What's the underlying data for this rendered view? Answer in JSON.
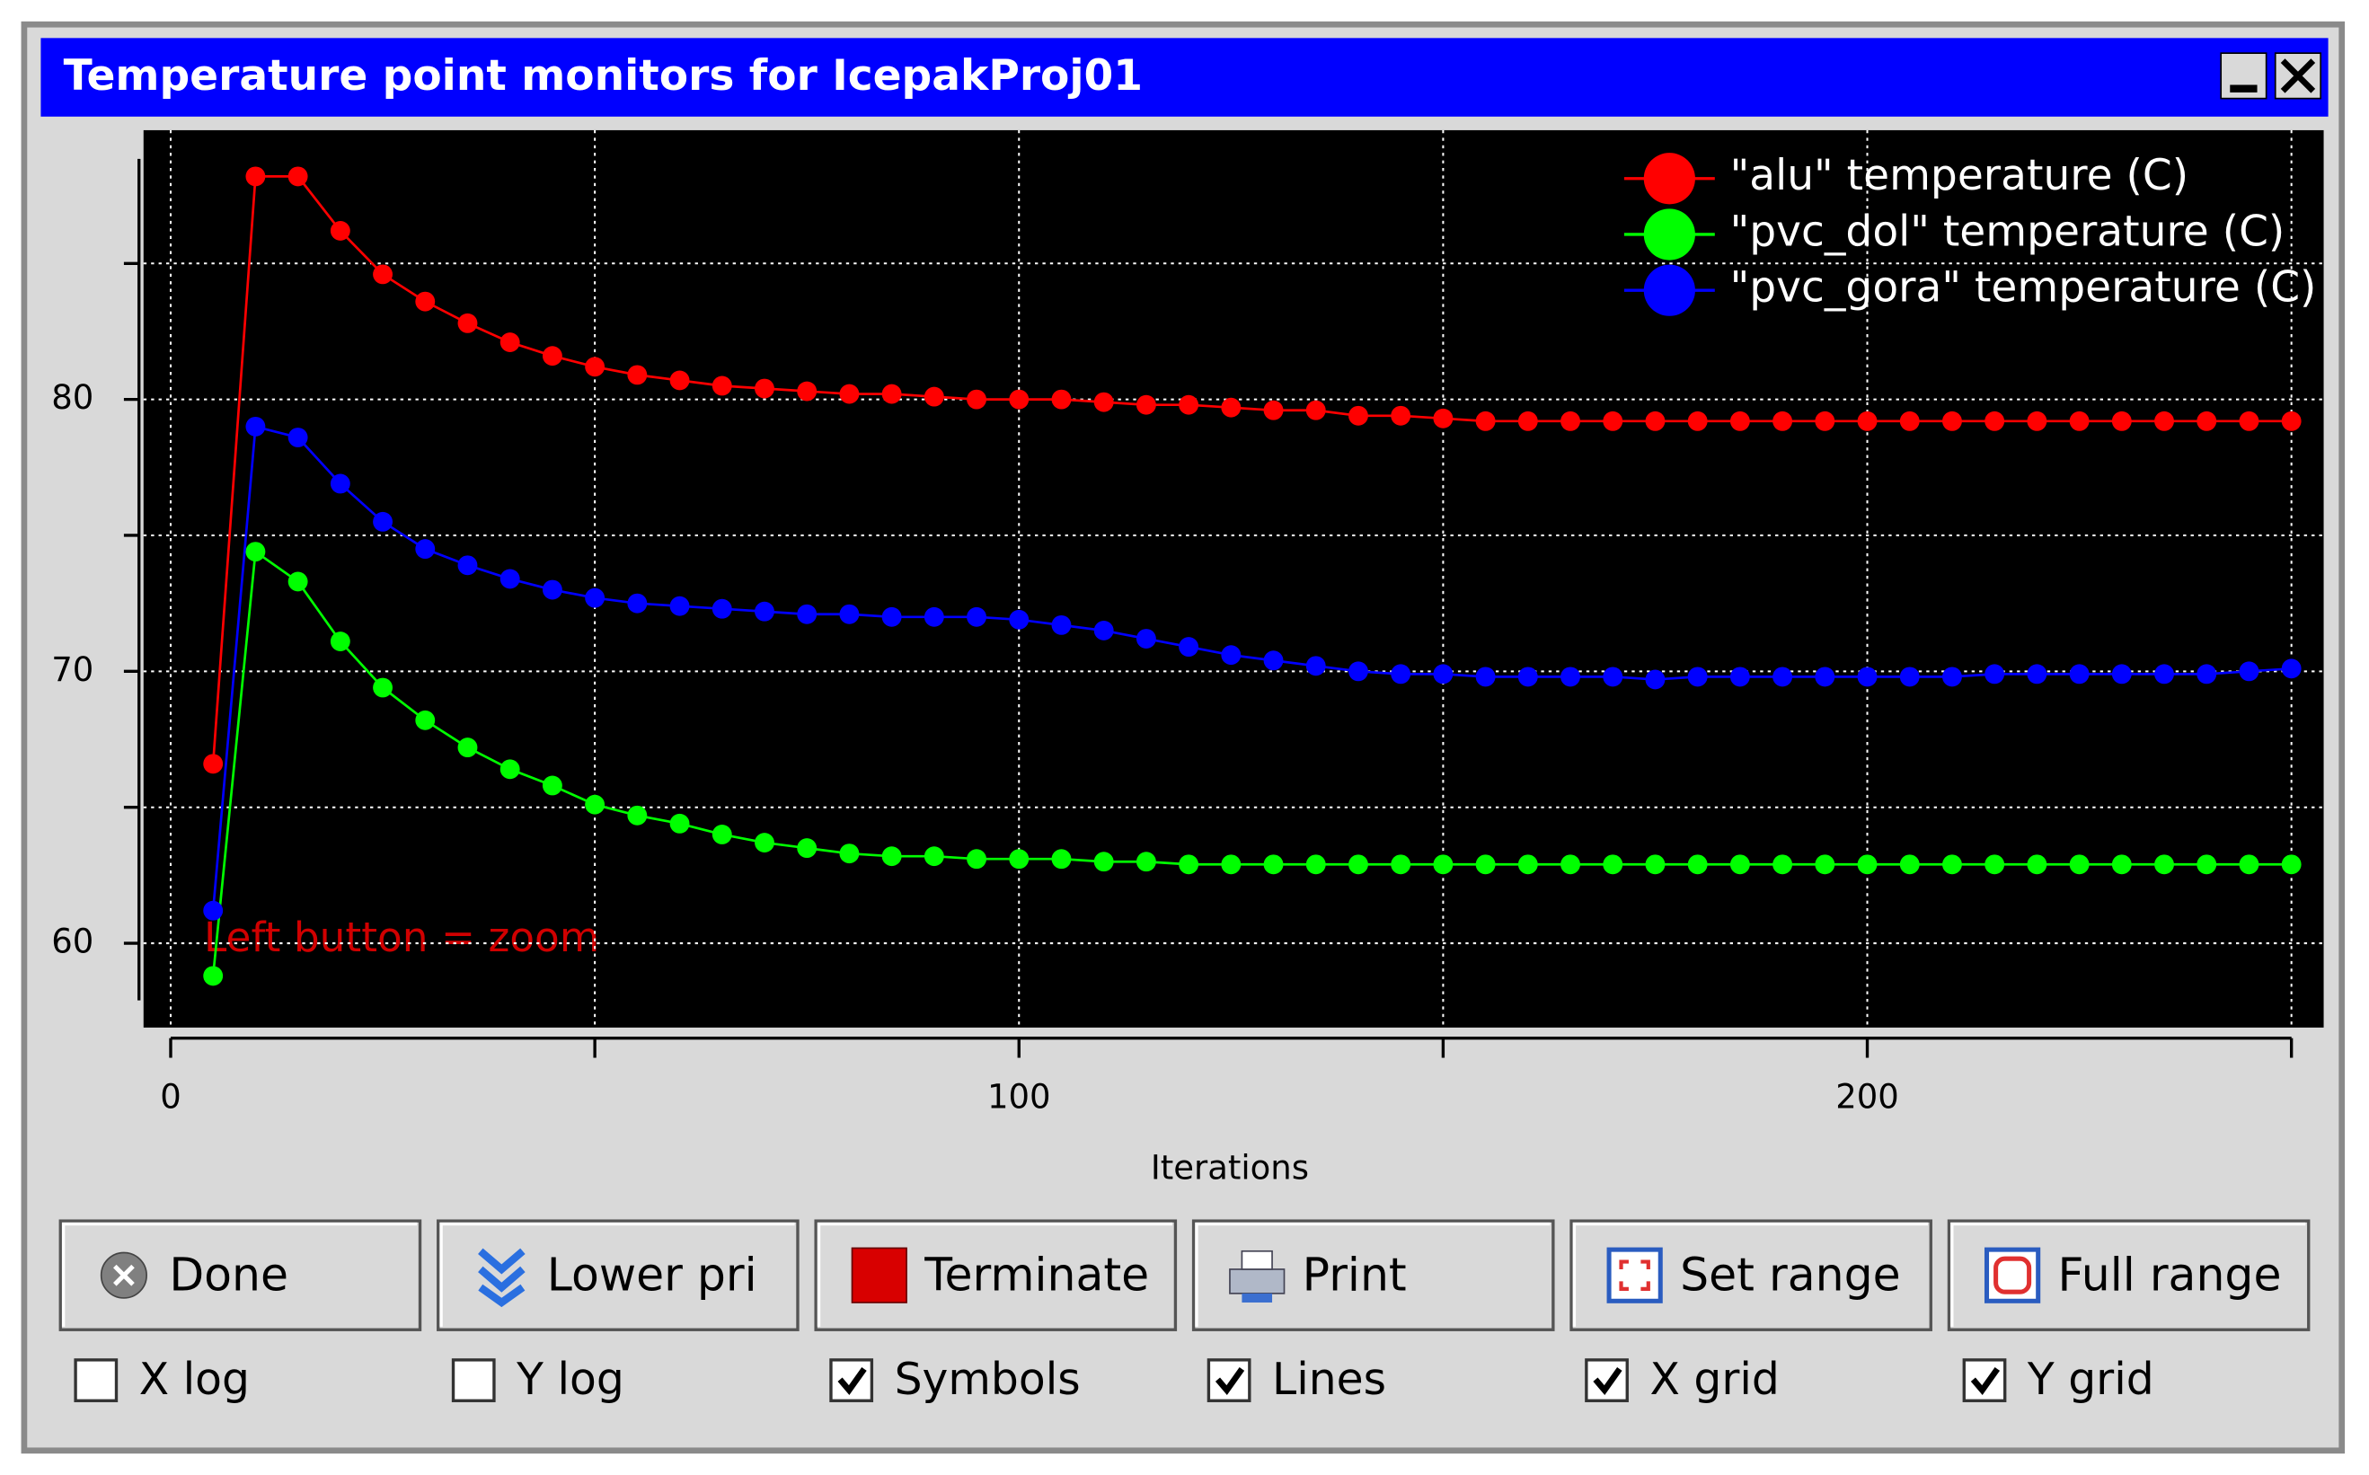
{
  "window": {
    "title": "Temperature point monitors for IcepakProj01"
  },
  "chart_data": {
    "type": "line",
    "annotation": "Left button = zoom",
    "x_label": "Iterations",
    "x": [
      5,
      10,
      15,
      20,
      25,
      30,
      35,
      40,
      45,
      50,
      55,
      60,
      65,
      70,
      75,
      80,
      85,
      90,
      95,
      100,
      105,
      110,
      115,
      120,
      125,
      130,
      135,
      140,
      145,
      150,
      155,
      160,
      165,
      170,
      175,
      180,
      185,
      190,
      195,
      200,
      205,
      210,
      215,
      220,
      225,
      230,
      235,
      240,
      245,
      250
    ],
    "series": [
      {
        "name": "\"alu\" temperature (C)",
        "color": "#ff0000",
        "values": [
          66.6,
          88.2,
          88.2,
          86.2,
          84.6,
          83.6,
          82.8,
          82.1,
          81.6,
          81.2,
          80.9,
          80.7,
          80.5,
          80.4,
          80.3,
          80.2,
          80.2,
          80.1,
          80.0,
          80.0,
          80.0,
          79.9,
          79.8,
          79.8,
          79.7,
          79.6,
          79.6,
          79.4,
          79.4,
          79.3,
          79.2,
          79.2,
          79.2,
          79.2,
          79.2,
          79.2,
          79.2,
          79.2,
          79.2,
          79.2,
          79.2,
          79.2,
          79.2,
          79.2,
          79.2,
          79.2,
          79.2,
          79.2,
          79.2,
          79.2
        ]
      },
      {
        "name": "\"pvc_dol\" temperature (C)",
        "color": "#00ff00",
        "values": [
          58.8,
          74.4,
          73.3,
          71.1,
          69.4,
          68.2,
          67.2,
          66.4,
          65.8,
          65.1,
          64.7,
          64.4,
          64.0,
          63.7,
          63.5,
          63.3,
          63.2,
          63.2,
          63.1,
          63.1,
          63.1,
          63.0,
          63.0,
          62.9,
          62.9,
          62.9,
          62.9,
          62.9,
          62.9,
          62.9,
          62.9,
          62.9,
          62.9,
          62.9,
          62.9,
          62.9,
          62.9,
          62.9,
          62.9,
          62.9,
          62.9,
          62.9,
          62.9,
          62.9,
          62.9,
          62.9,
          62.9,
          62.9,
          62.9,
          62.9
        ]
      },
      {
        "name": "\"pvc_gora\" temperature (C)",
        "color": "#0000ff",
        "values": [
          61.2,
          79.0,
          78.6,
          76.9,
          75.5,
          74.5,
          73.9,
          73.4,
          73.0,
          72.7,
          72.5,
          72.4,
          72.3,
          72.2,
          72.1,
          72.1,
          72.0,
          72.0,
          72.0,
          71.9,
          71.7,
          71.5,
          71.2,
          70.9,
          70.6,
          70.4,
          70.2,
          70.0,
          69.9,
          69.9,
          69.8,
          69.8,
          69.8,
          69.8,
          69.7,
          69.8,
          69.8,
          69.8,
          69.8,
          69.8,
          69.8,
          69.8,
          69.9,
          69.9,
          69.9,
          69.9,
          69.9,
          69.9,
          70.0,
          70.1
        ]
      }
    ],
    "xlim": [
      -3.2,
      253.8
    ],
    "ylim": [
      56.9,
      89.9
    ],
    "xticks": [
      0,
      100,
      200
    ],
    "xminor_ticks": [
      50,
      150,
      250
    ],
    "yticks": [
      60,
      70,
      80
    ],
    "yminor_ticks": [
      65,
      75,
      85
    ],
    "xgrid": true,
    "ygrid": true,
    "symbols": true,
    "lines": true,
    "legend": "upper right"
  },
  "buttons": [
    "Done",
    "Lower pri",
    "Terminate",
    "Print",
    "Set range",
    "Full range"
  ],
  "checkboxes": [
    {
      "label": "X log",
      "checked": false
    },
    {
      "label": "Y log",
      "checked": false
    },
    {
      "label": "Symbols",
      "checked": true
    },
    {
      "label": "Lines",
      "checked": true
    },
    {
      "label": "X grid",
      "checked": true
    },
    {
      "label": "Y grid",
      "checked": true
    }
  ]
}
